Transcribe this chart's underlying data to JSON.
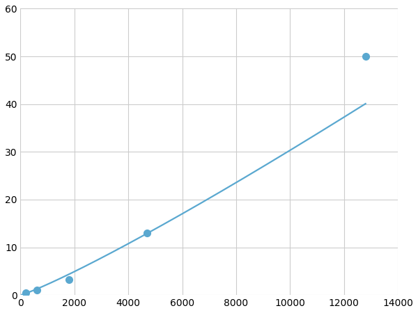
{
  "x_points": [
    200,
    600,
    1800,
    4700,
    12800
  ],
  "y_points": [
    0.5,
    1.0,
    3.2,
    13.0,
    50.0
  ],
  "line_color": "#5aa8d0",
  "marker_color": "#5aa8d0",
  "marker_size": 7,
  "line_width": 1.6,
  "xlim": [
    0,
    14000
  ],
  "ylim": [
    0,
    60
  ],
  "xticks": [
    0,
    2000,
    4000,
    6000,
    8000,
    10000,
    12000,
    14000
  ],
  "yticks": [
    0,
    10,
    20,
    30,
    40,
    50,
    60
  ],
  "grid_color": "#cccccc",
  "background_color": "#ffffff",
  "tick_label_fontsize": 10
}
